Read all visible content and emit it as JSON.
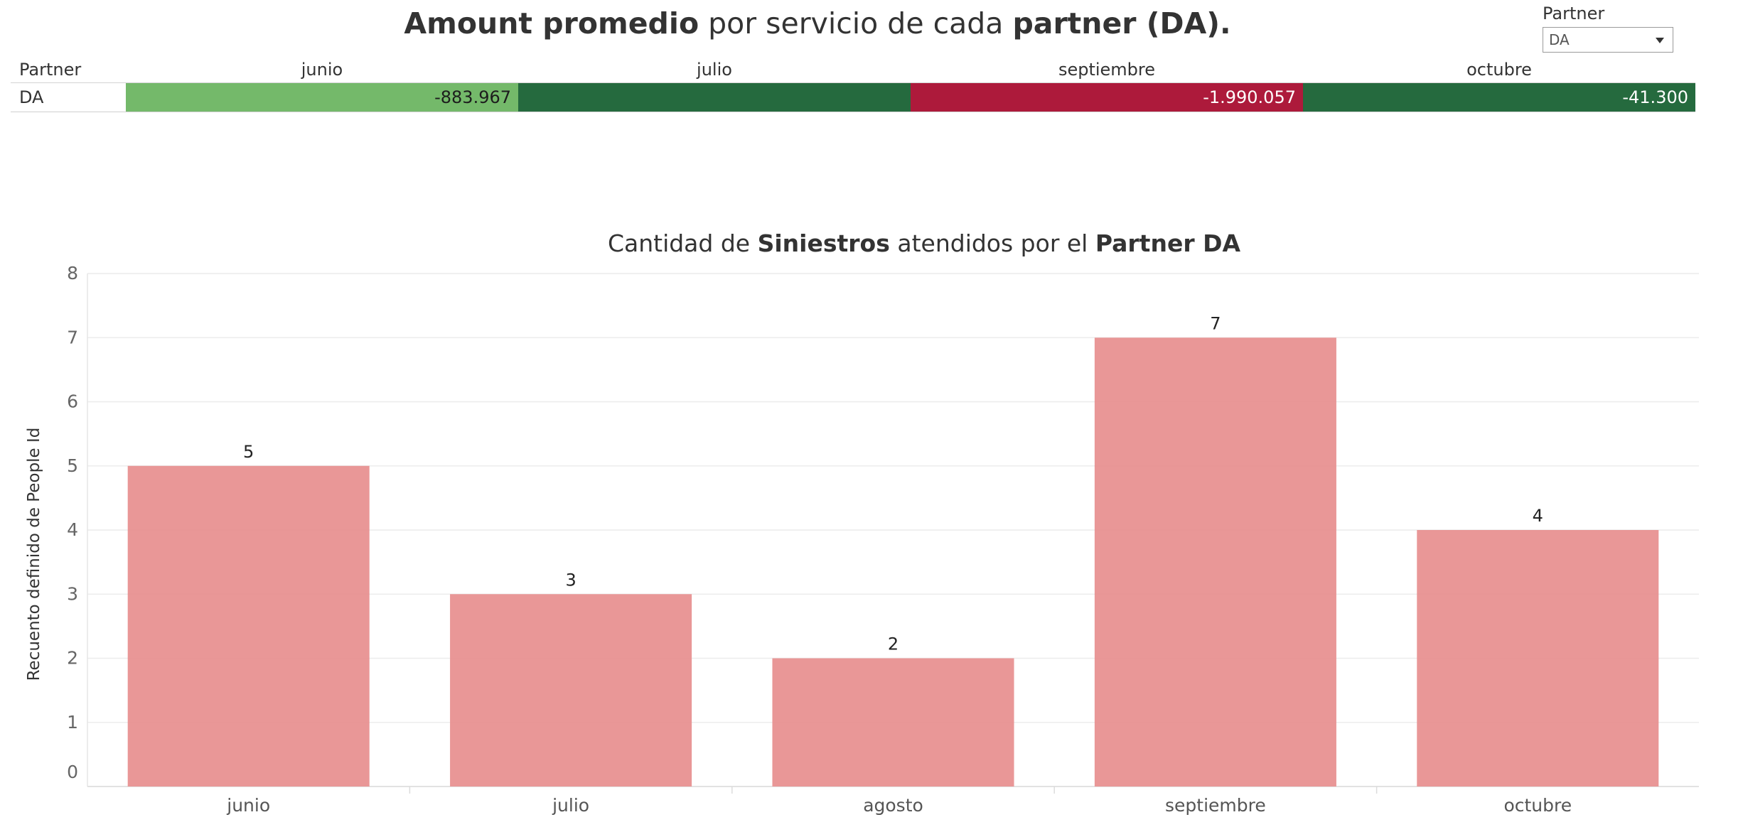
{
  "top_chart": {
    "title_parts": [
      {
        "text": "Amount promedio",
        "bold": true
      },
      {
        "text": " por servicio de cada ",
        "bold": false
      },
      {
        "text": "partner",
        "bold": true
      },
      {
        "text": " (DA).",
        "bold": true
      }
    ]
  },
  "filter": {
    "label": "Partner",
    "selected": "DA"
  },
  "heatmap": {
    "corner_label": "Partner",
    "row_label": "DA",
    "columns": [
      {
        "month": "junio",
        "value_text": "-883.967",
        "color": "#74b96a",
        "text_color": "#1d1d1d"
      },
      {
        "month": "julio",
        "value_text": "",
        "color": "#256a3e",
        "text_color": "#ffffff"
      },
      {
        "month": "septiembre",
        "value_text": "-1.990.057",
        "color": "#ad1a3b",
        "text_color": "#ffffff"
      },
      {
        "month": "octubre",
        "value_text": "-41.300",
        "color": "#256a3e",
        "text_color": "#ffffff"
      }
    ]
  },
  "bar_chart": {
    "title_parts": [
      {
        "text": "Cantidad de ",
        "bold": false
      },
      {
        "text": "Siniestros",
        "bold": true
      },
      {
        "text": " atendidos por el ",
        "bold": false
      },
      {
        "text": "Partner DA",
        "bold": true
      }
    ],
    "ylabel": "Recuento definido de People Id"
  },
  "chart_data": {
    "type": "bar",
    "title": "Cantidad de Siniestros atendidos por el Partner DA",
    "xlabel": "",
    "ylabel": "Recuento definido de People Id",
    "categories": [
      "junio",
      "julio",
      "agosto",
      "septiembre",
      "octubre"
    ],
    "values": [
      5,
      3,
      2,
      7,
      4
    ],
    "ylim": [
      0,
      8
    ],
    "yticks": [
      0,
      1,
      2,
      3,
      4,
      5,
      6,
      7,
      8
    ],
    "grid": true,
    "bar_color": "#e89191",
    "data_labels": true
  }
}
